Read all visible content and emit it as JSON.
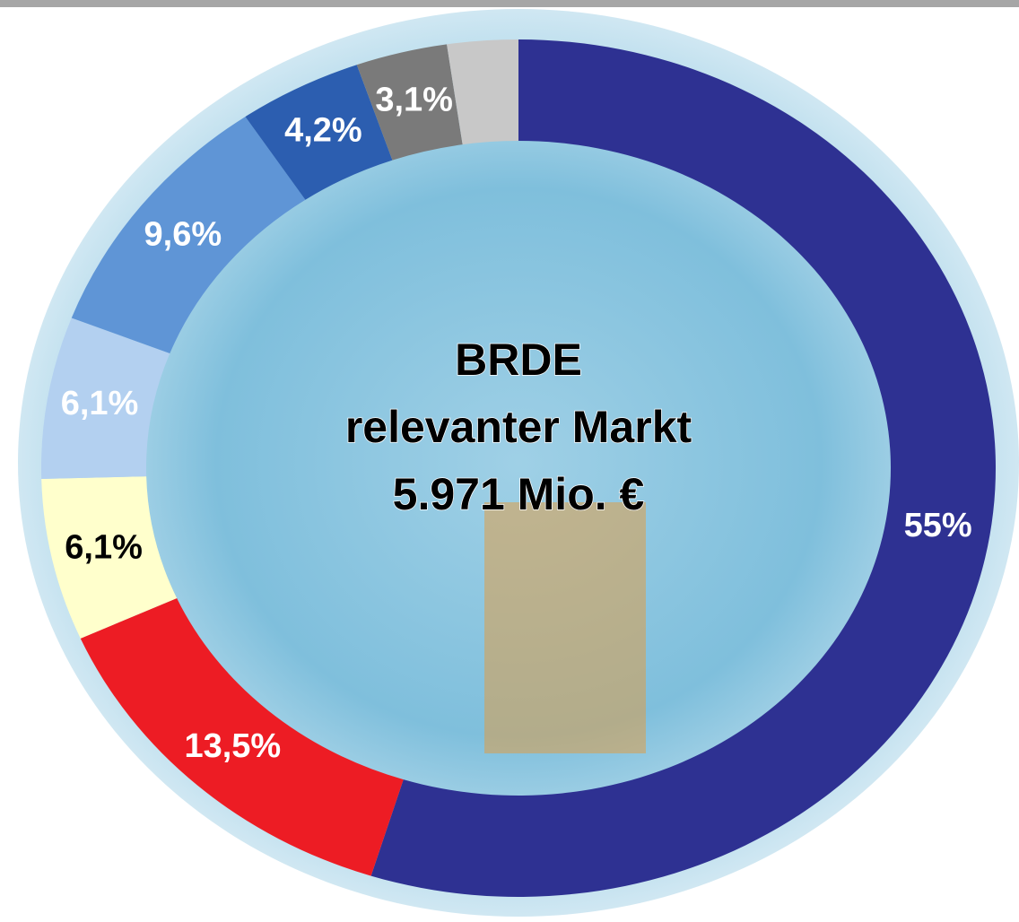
{
  "chart_data": {
    "type": "donut",
    "center_text": [
      "BRDE",
      "relevanter Markt",
      "5.971 Mio. €"
    ],
    "values": [
      55,
      13.5,
      6.1,
      6.1,
      9.6,
      4.2,
      3.1,
      2.4
    ],
    "value_labels": [
      "55%",
      "13,5%",
      "6,1%",
      "6,1%",
      "9,6%",
      "4,2%",
      "3,1%",
      null
    ],
    "colors": [
      "#2e3192",
      "#ed1c24",
      "#ffffcc",
      "#b3d0f0",
      "#5f95d6",
      "#2c5eb0",
      "#7a7a7a",
      "#c8c8c8"
    ],
    "label_colors": [
      "#ffffff",
      "#ffffff",
      "#000000",
      "#ffffff",
      "#ffffff",
      "#ffffff",
      "#ffffff",
      "#ffffff"
    ]
  }
}
